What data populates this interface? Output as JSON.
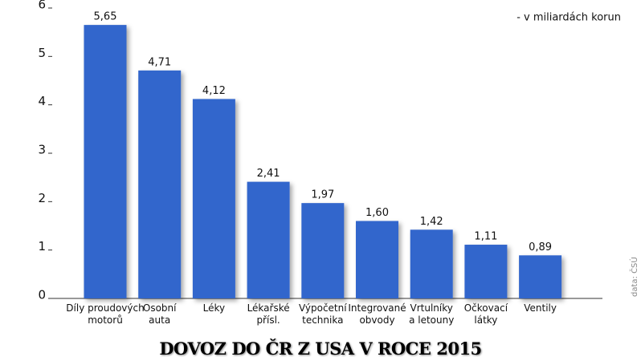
{
  "chart_data": {
    "type": "bar",
    "title": "DOVOZ DO ČR Z USA V ROCE 2015",
    "subtitle": "- v miliardách korun",
    "source": "data: ČSÚ",
    "categories": [
      "Díly proudových\nmotorů",
      "Osobní\nauta",
      "Léky",
      "Lékařské\npřísl.",
      "Výpočetní\ntechnika",
      "Integrované\nobvody",
      "Vrtulníky\na letouny",
      "Očkovací\nlátky",
      "Ventily"
    ],
    "values": [
      5.65,
      4.71,
      4.12,
      2.41,
      1.97,
      1.6,
      1.42,
      1.11,
      0.89
    ],
    "value_labels": [
      "5,65",
      "4,71",
      "4,12",
      "2,41",
      "1,97",
      "1,60",
      "1,42",
      "1,11",
      "0,89"
    ],
    "color": "#3366cc",
    "ylim": [
      0,
      6
    ],
    "yticks": [
      0,
      1,
      2,
      3,
      4,
      5,
      6
    ],
    "grid": false
  }
}
